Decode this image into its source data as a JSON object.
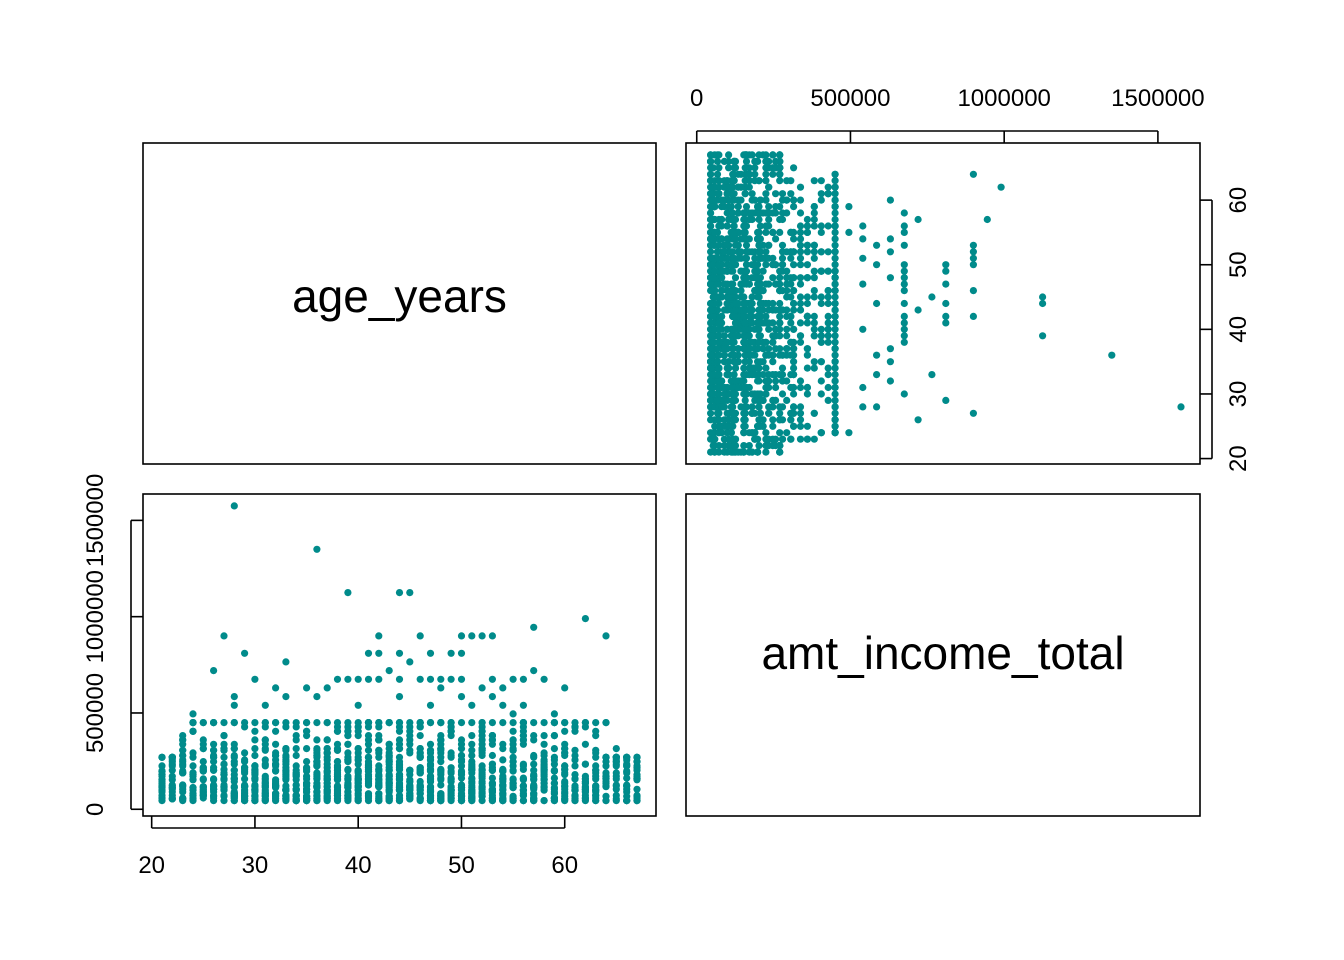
{
  "chart_data": {
    "type": "scatter",
    "variables": [
      "age_years",
      "amt_income_total"
    ],
    "point_color": "#008B8B",
    "panels": [
      {
        "row": 1,
        "col": 1,
        "kind": "label",
        "variable": "age_years"
      },
      {
        "row": 1,
        "col": 2,
        "kind": "scatter",
        "x": "amt_income_total",
        "y": "age_years"
      },
      {
        "row": 2,
        "col": 1,
        "kind": "scatter",
        "x": "age_years",
        "y": "amt_income_total"
      },
      {
        "row": 2,
        "col": 2,
        "kind": "label",
        "variable": "amt_income_total"
      }
    ],
    "axes": {
      "age_years": {
        "range": [
          21,
          67
        ],
        "ticks": [
          20,
          30,
          40,
          50,
          60
        ],
        "tick_labels": [
          "20",
          "30",
          "40",
          "50",
          "60"
        ]
      },
      "amt_income_total": {
        "range": [
          27000,
          1575000
        ],
        "ticks": [
          0,
          500000,
          1000000,
          1500000
        ],
        "tick_labels": [
          "0",
          "500000",
          "1000000",
          "1500000"
        ]
      }
    },
    "bulk": {
      "age_range": [
        21,
        67
      ],
      "income_range": [
        40000,
        450000
      ]
    },
    "outliers": [
      [
        28,
        1575000
      ],
      [
        36,
        1350000
      ],
      [
        39,
        1125000
      ],
      [
        44,
        1125000
      ],
      [
        45,
        1125000
      ],
      [
        62,
        990000
      ],
      [
        57,
        945000
      ],
      [
        27,
        900000
      ],
      [
        64,
        900000
      ],
      [
        29,
        810000
      ],
      [
        42,
        900000
      ],
      [
        46,
        900000
      ],
      [
        50,
        900000
      ],
      [
        51,
        900000
      ],
      [
        52,
        900000
      ],
      [
        53,
        900000
      ],
      [
        41,
        810000
      ],
      [
        42,
        810000
      ],
      [
        44,
        810000
      ],
      [
        47,
        810000
      ],
      [
        49,
        810000
      ],
      [
        50,
        810000
      ],
      [
        26,
        720000
      ],
      [
        33,
        765000
      ],
      [
        45,
        765000
      ],
      [
        43,
        720000
      ],
      [
        57,
        720000
      ],
      [
        30,
        675000
      ],
      [
        38,
        675000
      ],
      [
        39,
        675000
      ],
      [
        40,
        675000
      ],
      [
        41,
        675000
      ],
      [
        42,
        675000
      ],
      [
        44,
        675000
      ],
      [
        46,
        675000
      ],
      [
        47,
        675000
      ],
      [
        48,
        675000
      ],
      [
        49,
        675000
      ],
      [
        50,
        675000
      ],
      [
        53,
        675000
      ],
      [
        55,
        675000
      ],
      [
        56,
        675000
      ],
      [
        58,
        675000
      ],
      [
        60,
        630000
      ],
      [
        32,
        630000
      ],
      [
        35,
        630000
      ],
      [
        37,
        630000
      ],
      [
        48,
        630000
      ],
      [
        52,
        630000
      ],
      [
        54,
        630000
      ],
      [
        24,
        495000
      ],
      [
        25,
        450000
      ],
      [
        28,
        540000
      ],
      [
        28,
        585000
      ],
      [
        31,
        540000
      ],
      [
        33,
        585000
      ],
      [
        36,
        585000
      ],
      [
        40,
        540000
      ],
      [
        44,
        585000
      ],
      [
        47,
        540000
      ],
      [
        50,
        585000
      ],
      [
        51,
        540000
      ],
      [
        53,
        585000
      ],
      [
        54,
        540000
      ],
      [
        55,
        495000
      ],
      [
        56,
        540000
      ],
      [
        59,
        495000
      ],
      [
        62,
        450000
      ],
      [
        64,
        450000
      ],
      [
        65,
        315000
      ],
      [
        66,
        225000
      ],
      [
        67,
        180000
      ],
      [
        23,
        360000
      ],
      [
        22,
        270000
      ],
      [
        21,
        180000
      ]
    ]
  }
}
